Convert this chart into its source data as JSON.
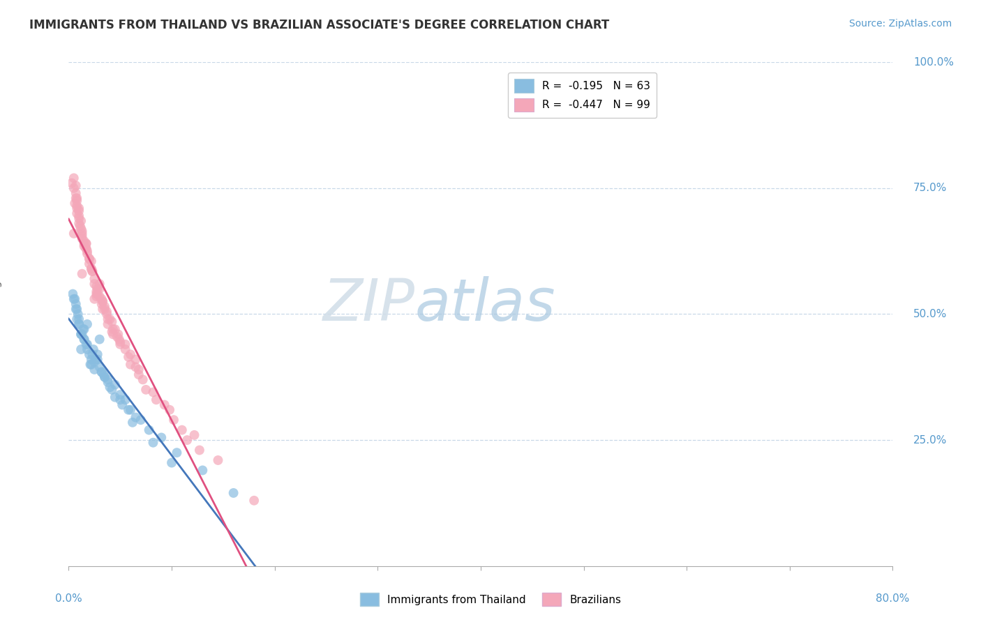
{
  "title": "IMMIGRANTS FROM THAILAND VS BRAZILIAN ASSOCIATE'S DEGREE CORRELATION CHART",
  "source_text": "Source: ZipAtlas.com",
  "ylabel_label": "Associate's Degree",
  "xmin": 0.0,
  "xmax": 80.0,
  "ymin": 0.0,
  "ymax": 100.0,
  "legend_r1": "R =  -0.195   N = 63",
  "legend_r2": "R =  -0.447   N = 99",
  "legend_label1": "Immigrants from Thailand",
  "legend_label2": "Brazilians",
  "color_blue": "#89bde0",
  "color_pink": "#f4a7b9",
  "color_blue_line": "#4477bb",
  "color_pink_line": "#e05080",
  "color_source": "#5599cc",
  "color_grid": "#c8d8e8",
  "color_axis_labels": "#5599cc",
  "watermark_zip_color": "#c8d8e8",
  "watermark_atlas_color": "#a8c8e0",
  "blue_x": [
    1.2,
    2.5,
    3.8,
    1.8,
    3.0,
    0.8,
    1.5,
    2.2,
    4.5,
    5.5,
    1.0,
    1.8,
    5.0,
    0.6,
    2.8,
    6.0,
    1.2,
    2.1,
    3.5,
    7.0,
    0.4,
    1.5,
    2.8,
    4.2,
    0.9,
    2.4,
    5.2,
    1.4,
    3.2,
    3.8,
    9.0,
    1.0,
    2.0,
    3.4,
    6.5,
    0.7,
    1.2,
    2.5,
    5.0,
    7.8,
    0.5,
    1.7,
    3.0,
    4.0,
    10.5,
    0.8,
    1.8,
    4.5,
    1.5,
    5.8,
    2.6,
    8.2,
    1.3,
    3.5,
    2.3,
    1.0,
    13.0,
    10.0,
    6.2,
    3.2,
    2.2,
    0.7,
    16.0
  ],
  "blue_y": [
    43.0,
    39.0,
    36.5,
    48.0,
    45.0,
    51.0,
    47.0,
    41.0,
    36.0,
    33.0,
    49.0,
    44.0,
    34.0,
    53.0,
    42.0,
    31.0,
    46.0,
    40.0,
    37.5,
    29.0,
    54.0,
    45.0,
    41.0,
    35.0,
    50.0,
    43.0,
    32.0,
    47.0,
    38.5,
    37.0,
    25.5,
    48.0,
    42.0,
    38.0,
    29.5,
    52.0,
    46.0,
    40.5,
    33.0,
    27.0,
    53.0,
    44.0,
    39.5,
    35.5,
    22.5,
    49.0,
    43.0,
    33.5,
    45.0,
    31.0,
    41.0,
    24.5,
    46.0,
    37.5,
    42.0,
    48.0,
    19.0,
    20.5,
    28.5,
    38.5,
    40.0,
    51.0,
    14.5
  ],
  "pink_x": [
    0.5,
    1.3,
    2.5,
    0.8,
    2.0,
    3.3,
    1.0,
    3.0,
    4.8,
    0.7,
    1.7,
    2.7,
    5.5,
    1.2,
    4.0,
    6.8,
    1.5,
    2.3,
    3.5,
    6.5,
    0.3,
    1.3,
    2.8,
    4.3,
    8.5,
    0.8,
    1.8,
    3.2,
    6.0,
    1.0,
    2.2,
    3.8,
    7.5,
    0.6,
    1.5,
    2.7,
    4.9,
    10.2,
    1.1,
    2.0,
    3.3,
    5.5,
    0.5,
    1.3,
    2.5,
    4.2,
    12.2,
    1.0,
    1.7,
    3.0,
    5.0,
    9.3,
    0.8,
    2.2,
    3.7,
    7.2,
    1.3,
    2.7,
    4.7,
    0.7,
    1.8,
    3.3,
    6.0,
    14.5,
    1.2,
    2.3,
    4.2,
    11.5,
    0.5,
    1.7,
    3.2,
    5.8,
    1.0,
    2.0,
    3.5,
    8.2,
    0.8,
    2.5,
    4.5,
    18.0,
    0.7,
    1.5,
    2.8,
    5.0,
    9.8,
    1.3,
    3.8,
    6.8,
    2.2,
    4.3,
    1.0,
    3.0,
    12.7,
    0.8,
    1.7,
    3.7,
    6.5,
    11.0,
    2.7
  ],
  "pink_y": [
    66.0,
    58.0,
    53.0,
    71.0,
    61.0,
    51.0,
    69.0,
    56.0,
    46.0,
    73.0,
    63.0,
    54.0,
    43.0,
    67.0,
    49.0,
    39.0,
    64.0,
    58.5,
    51.5,
    41.0,
    76.0,
    65.0,
    55.0,
    47.0,
    33.0,
    70.0,
    62.0,
    52.0,
    40.0,
    68.0,
    59.0,
    48.0,
    35.0,
    72.0,
    63.5,
    54.5,
    45.0,
    29.0,
    67.5,
    60.0,
    52.5,
    44.0,
    75.0,
    66.5,
    56.0,
    46.5,
    26.0,
    69.5,
    64.0,
    53.5,
    44.5,
    32.0,
    71.5,
    60.5,
    50.5,
    37.0,
    65.5,
    55.5,
    45.5,
    74.0,
    62.5,
    52.5,
    42.0,
    21.0,
    68.5,
    58.5,
    48.5,
    25.0,
    77.0,
    63.0,
    53.0,
    41.5,
    70.5,
    61.0,
    51.0,
    34.5,
    72.5,
    57.0,
    47.0,
    13.0,
    75.5,
    64.5,
    54.0,
    44.0,
    31.0,
    66.0,
    49.0,
    38.0,
    59.0,
    46.0,
    71.0,
    55.0,
    23.0,
    73.0,
    64.0,
    50.0,
    39.5,
    27.0,
    53.5
  ]
}
